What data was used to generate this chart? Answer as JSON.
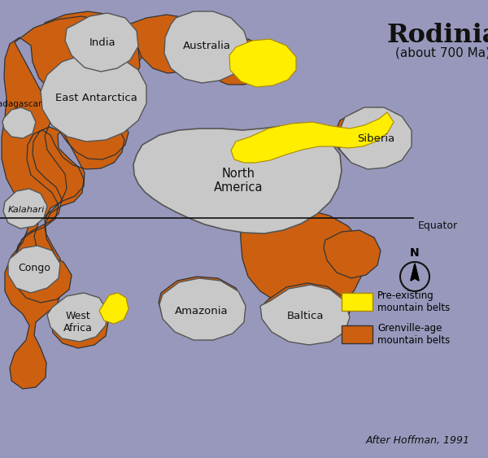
{
  "bg": "#9898bc",
  "gray": "#c8c8c8",
  "orange": "#cc6010",
  "yellow": "#ffee00",
  "edge": "#333333",
  "title": "Rodinia",
  "subtitle": "(about 700 Ma)",
  "credit": "After Hoffman, 1991",
  "equator": "Equator",
  "north": "N",
  "legend_yellow": "Pre-existing\nmountain belts",
  "legend_orange": "Grenville-age\nmountain belts"
}
